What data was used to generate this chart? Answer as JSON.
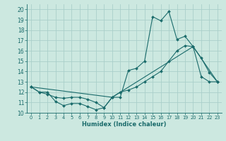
{
  "xlabel": "Humidex (Indice chaleur)",
  "bg_color": "#cce8e0",
  "grid_color": "#aacfca",
  "line_color": "#1a6b6b",
  "xlim": [
    -0.5,
    23.5
  ],
  "ylim": [
    10,
    20.5
  ],
  "xticks": [
    0,
    1,
    2,
    3,
    4,
    5,
    6,
    7,
    8,
    9,
    10,
    11,
    12,
    13,
    14,
    15,
    16,
    17,
    18,
    19,
    20,
    21,
    22,
    23
  ],
  "yticks": [
    10,
    11,
    12,
    13,
    14,
    15,
    16,
    17,
    18,
    19,
    20
  ],
  "curve1_x": [
    0,
    1,
    2,
    3,
    4,
    5,
    6,
    7,
    8,
    9,
    10,
    11,
    12,
    13,
    14,
    15,
    16,
    17,
    18,
    19,
    20,
    21,
    22,
    23
  ],
  "curve1_y": [
    12.5,
    12.0,
    12.0,
    11.1,
    10.7,
    10.9,
    10.9,
    10.6,
    10.3,
    10.5,
    11.5,
    11.5,
    14.1,
    14.3,
    15.0,
    19.3,
    18.9,
    19.8,
    17.1,
    17.4,
    16.4,
    15.3,
    13.9,
    13.0
  ],
  "curve2_x": [
    0,
    1,
    2,
    3,
    4,
    5,
    6,
    7,
    8,
    9,
    10,
    11,
    12,
    13,
    14,
    15,
    16,
    17,
    18,
    19,
    20,
    21,
    22,
    23
  ],
  "curve2_y": [
    12.5,
    12.0,
    11.8,
    11.5,
    11.4,
    11.5,
    11.5,
    11.3,
    11.0,
    10.5,
    11.5,
    12.0,
    12.2,
    12.5,
    13.0,
    13.5,
    14.0,
    15.0,
    16.0,
    16.5,
    16.4,
    13.5,
    13.0,
    13.0
  ],
  "curve3_x": [
    0,
    10,
    20,
    23
  ],
  "curve3_y": [
    12.5,
    11.5,
    16.4,
    13.0
  ]
}
